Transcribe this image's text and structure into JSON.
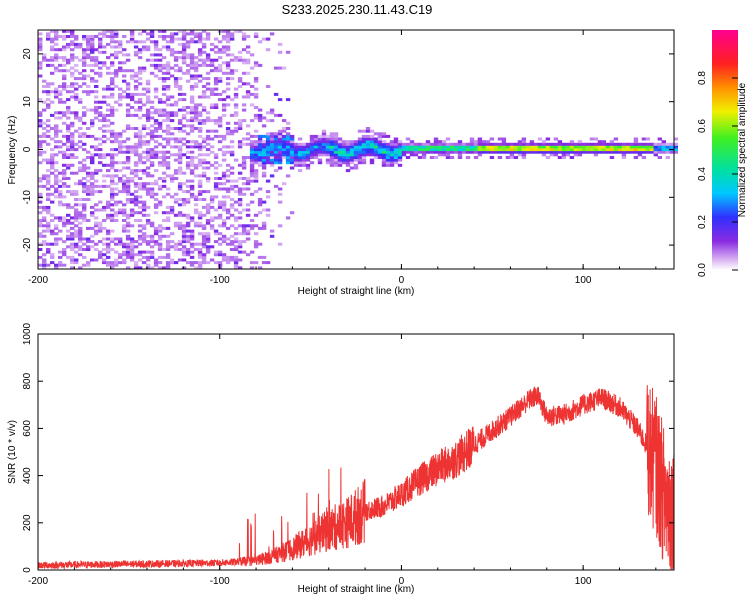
{
  "title": "S233.2025.230.11.43.C19",
  "chart_data": [
    {
      "type": "heatmap",
      "xlabel": "Height of straight line (km)",
      "ylabel": "Frequency (Hz)",
      "xlim": [
        -200,
        150
      ],
      "ylim": [
        -25,
        25
      ],
      "xticks": [
        -200,
        -100,
        0,
        100
      ],
      "yticks": [
        -20,
        -10,
        0,
        10,
        20
      ],
      "xtick_labels": [
        "-200",
        "-100",
        "0",
        "100"
      ],
      "ytick_labels": [
        "-20",
        "-10",
        "0",
        "10",
        "20"
      ],
      "colorbar": {
        "label": "Normalized spectral amplitude",
        "range": [
          0,
          1
        ],
        "ticks": [
          0,
          0.2,
          0.4,
          0.6,
          0.8
        ],
        "tick_labels": [
          "0.0",
          "0.2",
          "0.4",
          "0.6",
          "0.8"
        ],
        "colormap": "rainbow (white to violet, blue, cyan, green, yellow, red, magenta)"
      },
      "description_ref": "broadband diffuse energy for x < -60 km; narrow line at ~0 Hz from -80 to 150 km with amplitude rising to ~1.0 beyond 40 km"
    },
    {
      "type": "line",
      "xlabel": "Height of straight line (km)",
      "ylabel": "SNR (10 * v/v)",
      "xlim": [
        -200,
        150
      ],
      "ylim": [
        0,
        1000
      ],
      "xticks": [
        -200,
        -100,
        0,
        100
      ],
      "yticks": [
        0,
        200,
        400,
        600,
        800,
        1000
      ],
      "xtick_labels": [
        "-200",
        "-100",
        "0",
        "100"
      ],
      "ytick_labels": [
        "0",
        "200",
        "400",
        "600",
        "800",
        "1000"
      ],
      "series": [
        {
          "name": "SNR",
          "color": "#ee3333",
          "x": [
            -200,
            -150,
            -100,
            -80,
            -70,
            -60,
            -50,
            -40,
            -30,
            -20,
            -10,
            0,
            10,
            20,
            30,
            40,
            50,
            60,
            70,
            75,
            80,
            90,
            100,
            110,
            120,
            130,
            140,
            145,
            150
          ],
          "y": [
            20,
            25,
            30,
            40,
            60,
            90,
            130,
            170,
            200,
            250,
            270,
            320,
            380,
            430,
            470,
            530,
            590,
            650,
            720,
            740,
            650,
            660,
            700,
            730,
            690,
            600,
            450,
            300,
            250
          ]
        }
      ]
    }
  ],
  "colors": {
    "line": "#ee3333",
    "background": "#ffffff",
    "axis": "#000000"
  }
}
